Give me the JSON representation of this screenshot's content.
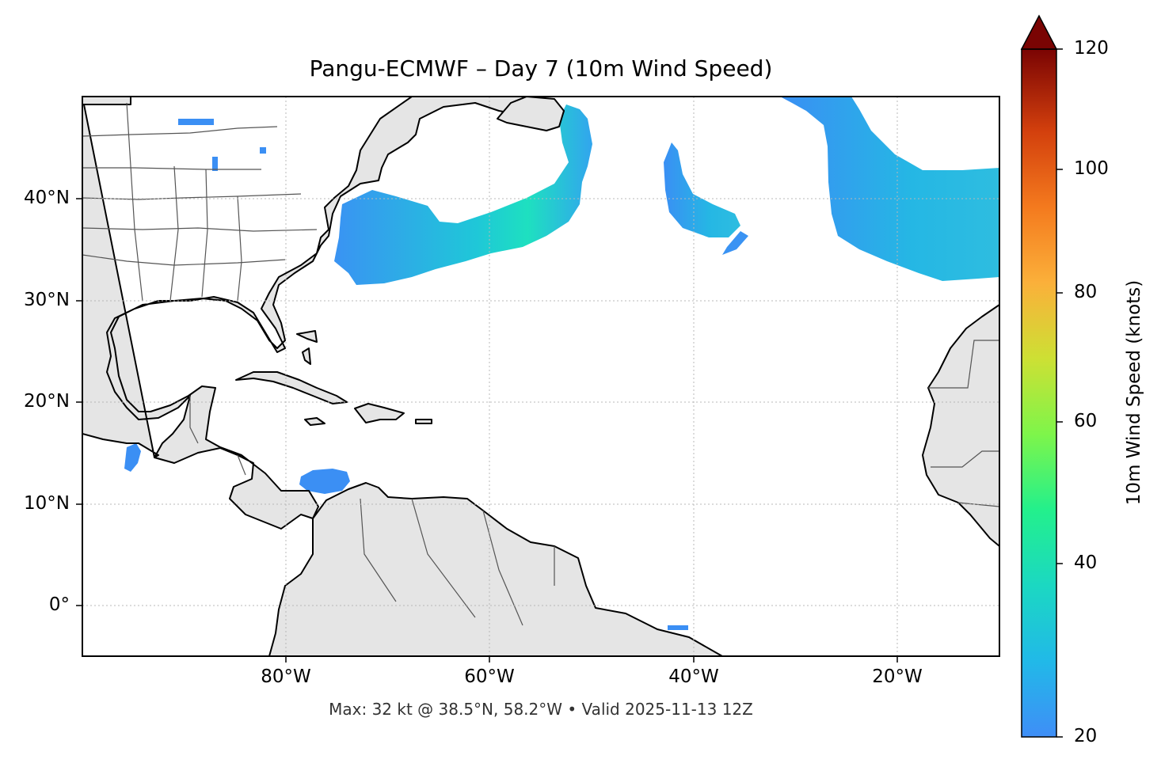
{
  "title": "Pangu-ECMWF – Day 7 (10m Wind Speed)",
  "footer": "Max: 32 kt @ 38.5°N, 58.2°W • Valid 2025-11-13 12Z",
  "map": {
    "lon_range": [
      -100,
      -10
    ],
    "lat_range": [
      -5,
      50
    ],
    "land_color": "#e5e5e5",
    "coast_color": "#000000",
    "border_color": "#555555",
    "grid": true,
    "lat_ticks": [
      {
        "value": 40,
        "label": "40°N"
      },
      {
        "value": 30,
        "label": "30°N"
      },
      {
        "value": 20,
        "label": "20°N"
      },
      {
        "value": 10,
        "label": "10°N"
      },
      {
        "value": 0,
        "label": "0°"
      }
    ],
    "lon_ticks": [
      {
        "value": -80,
        "label": "80°W"
      },
      {
        "value": -60,
        "label": "60°W"
      },
      {
        "value": -40,
        "label": "40°W"
      },
      {
        "value": -20,
        "label": "20°W"
      }
    ]
  },
  "colorbar": {
    "label": "10m Wind Speed (knots)",
    "min": 20,
    "max": 120,
    "extend": "max",
    "ticks": [
      "20",
      "40",
      "60",
      "80",
      "100",
      "120"
    ],
    "colors": [
      "#3f8ef7",
      "#1bcfd4",
      "#23f08c",
      "#a4f537",
      "#e7d22f",
      "#fbb03a",
      "#f1681a",
      "#c9330a",
      "#921000",
      "#7a0403"
    ]
  }
}
